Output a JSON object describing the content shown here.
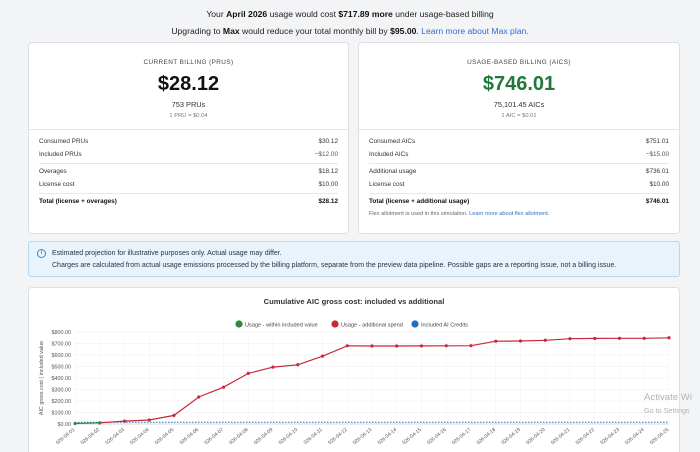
{
  "banner": {
    "line1": {
      "prefix": "Your ",
      "month": "April 2026",
      "middle": " usage would cost ",
      "amount": "$717.89 more",
      "suffix": " under usage-based billing"
    },
    "line2": {
      "prefix": "Upgrading to ",
      "plan": "Max",
      "middle": " would reduce your total monthly bill by ",
      "amount": "$95.00",
      "suffix": ". ",
      "link": "Learn more about Max plan."
    }
  },
  "current": {
    "label": "CURRENT BILLING (PRUS)",
    "amount": "$28.12",
    "units": "753 PRUs",
    "rate": "1 PRU = $0.04",
    "rows": [
      {
        "label": "Consumed PRUs",
        "value": "$30.12"
      },
      {
        "label": "Included PRUs",
        "value": "−$12.00"
      },
      {
        "label": "Overages",
        "value": "$18.12"
      },
      {
        "label": "License cost",
        "value": "$10.00"
      },
      {
        "label": "Total (license + overages)",
        "value": "$28.12"
      }
    ]
  },
  "usage": {
    "label": "USAGE-BASED BILLING (AICS)",
    "amount": "$746.01",
    "units": "75,101.45 AICs",
    "rate": "1 AIC = $0.01",
    "rows": [
      {
        "label": "Consumed AICs",
        "value": "$751.01"
      },
      {
        "label": "Included AICs",
        "value": "−$15.00"
      },
      {
        "label": "Additional usage",
        "value": "$736.01"
      },
      {
        "label": "License cost",
        "value": "$10.00"
      },
      {
        "label": "Total (license + additional usage)",
        "value": "$746.01"
      }
    ],
    "note": "Flex allotment is used in this simulation. ",
    "note_link": "Learn more about flex allotment."
  },
  "info": {
    "icon": "info-icon",
    "line1": "Estimated projection for illustrative purposes only. Actual usage may differ.",
    "line2": "Charges are calculated from actual usage emissions processed by the billing platform, separate from the preview data pipeline. Possible gaps are a reporting issue, not a billing issue."
  },
  "watermark": {
    "line1": "Activate Wi",
    "line2": "Go to Settings"
  },
  "chart_data": {
    "type": "line",
    "title": "Cumulative AIC gross cost: included vs additional",
    "ylabel": "AIC gross cost ( included value",
    "xlabel": "",
    "ylim": [
      0,
      800
    ],
    "yticks": [
      "$0.00",
      "$100.00",
      "$200.00",
      "$300.00",
      "$400.00",
      "$500.00",
      "$600.00",
      "$700.00",
      "$800.00"
    ],
    "grid": true,
    "legend_position": "top",
    "x": [
      "2026-04-01",
      "2026-04-02",
      "2026-04-03",
      "2026-04-04",
      "2026-04-05",
      "2026-04-06",
      "2026-04-07",
      "2026-04-08",
      "2026-04-09",
      "2026-04-10",
      "2026-04-11",
      "2026-04-12",
      "2026-04-13",
      "2026-04-14",
      "2026-04-15",
      "2026-04-16",
      "2026-04-17",
      "2026-04-18",
      "2026-04-19",
      "2026-04-20",
      "2026-04-21",
      "2026-04-22",
      "2026-04-23",
      "2026-04-24",
      "2026-04-25"
    ],
    "xtick_labels": [
      "026-04-01",
      "026-04-02",
      "026-04-03",
      "026-04-04",
      "026-04-05",
      "026-04-06",
      "026-04-07",
      "026-04-08",
      "026-04-09",
      "026-04-10",
      "026-04-11",
      "026-04-12",
      "026-04-13",
      "026-04-14",
      "026-04-15",
      "026-04-16",
      "026-04-17",
      "026-04-18",
      "026-04-19",
      "026-04-20",
      "026-04-21",
      "026-04-22",
      "026-04-23",
      "026-04-24",
      "026-04-25"
    ],
    "series": [
      {
        "name": "Usage - within included value",
        "color": "#2e8b3e",
        "values": [
          4,
          10,
          null,
          null,
          null,
          null,
          null,
          null,
          null,
          null,
          null,
          null,
          null,
          null,
          null,
          null,
          null,
          null,
          null,
          null,
          null,
          null,
          null,
          null,
          null
        ]
      },
      {
        "name": "Usage - additional spend",
        "color": "#c8283a",
        "values": [
          null,
          10,
          25,
          35,
          75,
          235,
          320,
          440,
          495,
          515,
          590,
          680,
          678,
          678,
          679,
          680,
          681,
          720,
          722,
          728,
          742,
          744,
          745,
          745,
          750
        ]
      },
      {
        "name": "Included AI Credits",
        "color": "#1f6fc0",
        "values": [
          15,
          15,
          15,
          15,
          15,
          15,
          15,
          15,
          15,
          15,
          15,
          15,
          15,
          15,
          15,
          15,
          15,
          15,
          15,
          15,
          15,
          15,
          15,
          15,
          15
        ]
      }
    ]
  }
}
